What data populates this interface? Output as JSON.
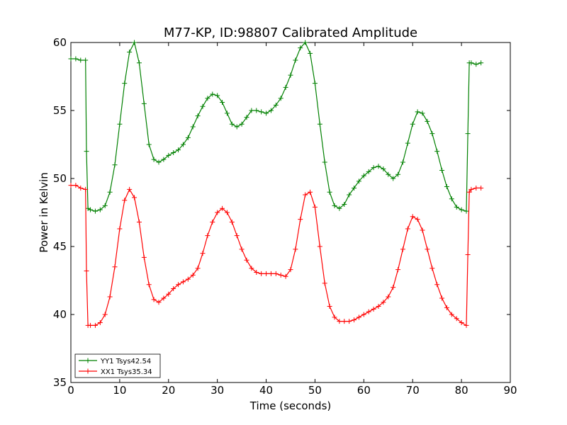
{
  "chart_data": {
    "type": "line",
    "title": "M77-KP, ID:98807 Calibrated Amplitude",
    "xlabel": "Time (seconds)",
    "ylabel": "Power in Kelvin",
    "xlim": [
      0,
      90
    ],
    "ylim": [
      35,
      60
    ],
    "xticks": [
      0,
      10,
      20,
      30,
      40,
      50,
      60,
      70,
      80,
      90
    ],
    "yticks": [
      35,
      40,
      45,
      50,
      55,
      60
    ],
    "grid": false,
    "legend_position": "lower-left",
    "marker": "plus",
    "series": [
      {
        "name": "YY1 Tsys42.54",
        "color": "#008000",
        "points": [
          [
            0,
            58.8
          ],
          [
            1,
            58.8
          ],
          [
            2,
            58.7
          ],
          [
            3,
            58.7
          ],
          [
            3.2,
            52.0
          ],
          [
            3.5,
            47.8
          ],
          [
            4,
            47.7
          ],
          [
            5,
            47.6
          ],
          [
            6,
            47.7
          ],
          [
            7,
            48.0
          ],
          [
            8,
            49.0
          ],
          [
            9,
            51.0
          ],
          [
            10,
            54.0
          ],
          [
            11,
            57.0
          ],
          [
            12,
            59.3
          ],
          [
            13,
            60.0
          ],
          [
            14,
            58.5
          ],
          [
            15,
            55.5
          ],
          [
            16,
            52.5
          ],
          [
            17,
            51.4
          ],
          [
            18,
            51.2
          ],
          [
            19,
            51.4
          ],
          [
            20,
            51.7
          ],
          [
            21,
            51.9
          ],
          [
            22,
            52.1
          ],
          [
            23,
            52.5
          ],
          [
            24,
            53.0
          ],
          [
            25,
            53.8
          ],
          [
            26,
            54.6
          ],
          [
            27,
            55.3
          ],
          [
            28,
            55.9
          ],
          [
            29,
            56.2
          ],
          [
            30,
            56.1
          ],
          [
            31,
            55.6
          ],
          [
            32,
            54.8
          ],
          [
            33,
            54.0
          ],
          [
            34,
            53.8
          ],
          [
            35,
            54.0
          ],
          [
            36,
            54.5
          ],
          [
            37,
            55.0
          ],
          [
            38,
            55.0
          ],
          [
            39,
            54.9
          ],
          [
            40,
            54.8
          ],
          [
            41,
            55.0
          ],
          [
            42,
            55.4
          ],
          [
            43,
            55.9
          ],
          [
            44,
            56.7
          ],
          [
            45,
            57.6
          ],
          [
            46,
            58.7
          ],
          [
            47,
            59.6
          ],
          [
            48,
            60.0
          ],
          [
            49,
            59.2
          ],
          [
            50,
            57.0
          ],
          [
            51,
            54.0
          ],
          [
            52,
            51.2
          ],
          [
            53,
            49.0
          ],
          [
            54,
            48.0
          ],
          [
            55,
            47.8
          ],
          [
            56,
            48.1
          ],
          [
            57,
            48.8
          ],
          [
            58,
            49.3
          ],
          [
            59,
            49.8
          ],
          [
            60,
            50.2
          ],
          [
            61,
            50.5
          ],
          [
            62,
            50.8
          ],
          [
            63,
            50.9
          ],
          [
            64,
            50.7
          ],
          [
            65,
            50.3
          ],
          [
            66,
            50.0
          ],
          [
            67,
            50.3
          ],
          [
            68,
            51.2
          ],
          [
            69,
            52.6
          ],
          [
            70,
            54.0
          ],
          [
            71,
            54.9
          ],
          [
            72,
            54.8
          ],
          [
            73,
            54.2
          ],
          [
            74,
            53.3
          ],
          [
            75,
            52.0
          ],
          [
            76,
            50.6
          ],
          [
            77,
            49.4
          ],
          [
            78,
            48.5
          ],
          [
            79,
            47.9
          ],
          [
            80,
            47.7
          ],
          [
            81,
            47.6
          ],
          [
            81.3,
            53.3
          ],
          [
            81.6,
            58.5
          ],
          [
            82,
            58.5
          ],
          [
            83,
            58.4
          ],
          [
            84,
            58.5
          ]
        ]
      },
      {
        "name": "XX1 Tsys35.34",
        "color": "#ff0000",
        "points": [
          [
            0,
            49.5
          ],
          [
            1,
            49.5
          ],
          [
            2,
            49.3
          ],
          [
            3,
            49.2
          ],
          [
            3.2,
            43.2
          ],
          [
            3.5,
            39.2
          ],
          [
            4,
            39.2
          ],
          [
            5,
            39.2
          ],
          [
            6,
            39.4
          ],
          [
            7,
            40.0
          ],
          [
            8,
            41.3
          ],
          [
            9,
            43.5
          ],
          [
            10,
            46.3
          ],
          [
            11,
            48.4
          ],
          [
            12,
            49.2
          ],
          [
            13,
            48.6
          ],
          [
            14,
            46.8
          ],
          [
            15,
            44.2
          ],
          [
            16,
            42.2
          ],
          [
            17,
            41.1
          ],
          [
            18,
            40.9
          ],
          [
            19,
            41.2
          ],
          [
            20,
            41.5
          ],
          [
            21,
            41.9
          ],
          [
            22,
            42.2
          ],
          [
            23,
            42.4
          ],
          [
            24,
            42.6
          ],
          [
            25,
            42.9
          ],
          [
            26,
            43.4
          ],
          [
            27,
            44.5
          ],
          [
            28,
            45.8
          ],
          [
            29,
            46.8
          ],
          [
            30,
            47.5
          ],
          [
            31,
            47.8
          ],
          [
            32,
            47.5
          ],
          [
            33,
            46.8
          ],
          [
            34,
            45.8
          ],
          [
            35,
            44.8
          ],
          [
            36,
            44.0
          ],
          [
            37,
            43.4
          ],
          [
            38,
            43.1
          ],
          [
            39,
            43.0
          ],
          [
            40,
            43.0
          ],
          [
            41,
            43.0
          ],
          [
            42,
            43.0
          ],
          [
            43,
            42.9
          ],
          [
            44,
            42.8
          ],
          [
            45,
            43.3
          ],
          [
            46,
            44.8
          ],
          [
            47,
            47.0
          ],
          [
            48,
            48.8
          ],
          [
            49,
            49.0
          ],
          [
            50,
            47.9
          ],
          [
            51,
            45.0
          ],
          [
            52,
            42.3
          ],
          [
            53,
            40.6
          ],
          [
            54,
            39.8
          ],
          [
            55,
            39.5
          ],
          [
            56,
            39.5
          ],
          [
            57,
            39.5
          ],
          [
            58,
            39.6
          ],
          [
            59,
            39.8
          ],
          [
            60,
            40.0
          ],
          [
            61,
            40.2
          ],
          [
            62,
            40.4
          ],
          [
            63,
            40.6
          ],
          [
            64,
            40.9
          ],
          [
            65,
            41.3
          ],
          [
            66,
            42.0
          ],
          [
            67,
            43.3
          ],
          [
            68,
            44.8
          ],
          [
            69,
            46.3
          ],
          [
            70,
            47.2
          ],
          [
            71,
            47.0
          ],
          [
            72,
            46.2
          ],
          [
            73,
            44.8
          ],
          [
            74,
            43.4
          ],
          [
            75,
            42.2
          ],
          [
            76,
            41.2
          ],
          [
            77,
            40.5
          ],
          [
            78,
            40.0
          ],
          [
            79,
            39.7
          ],
          [
            80,
            39.4
          ],
          [
            81,
            39.2
          ],
          [
            81.3,
            44.4
          ],
          [
            81.6,
            49.0
          ],
          [
            82,
            49.2
          ],
          [
            83,
            49.3
          ],
          [
            84,
            49.3
          ]
        ]
      }
    ]
  }
}
